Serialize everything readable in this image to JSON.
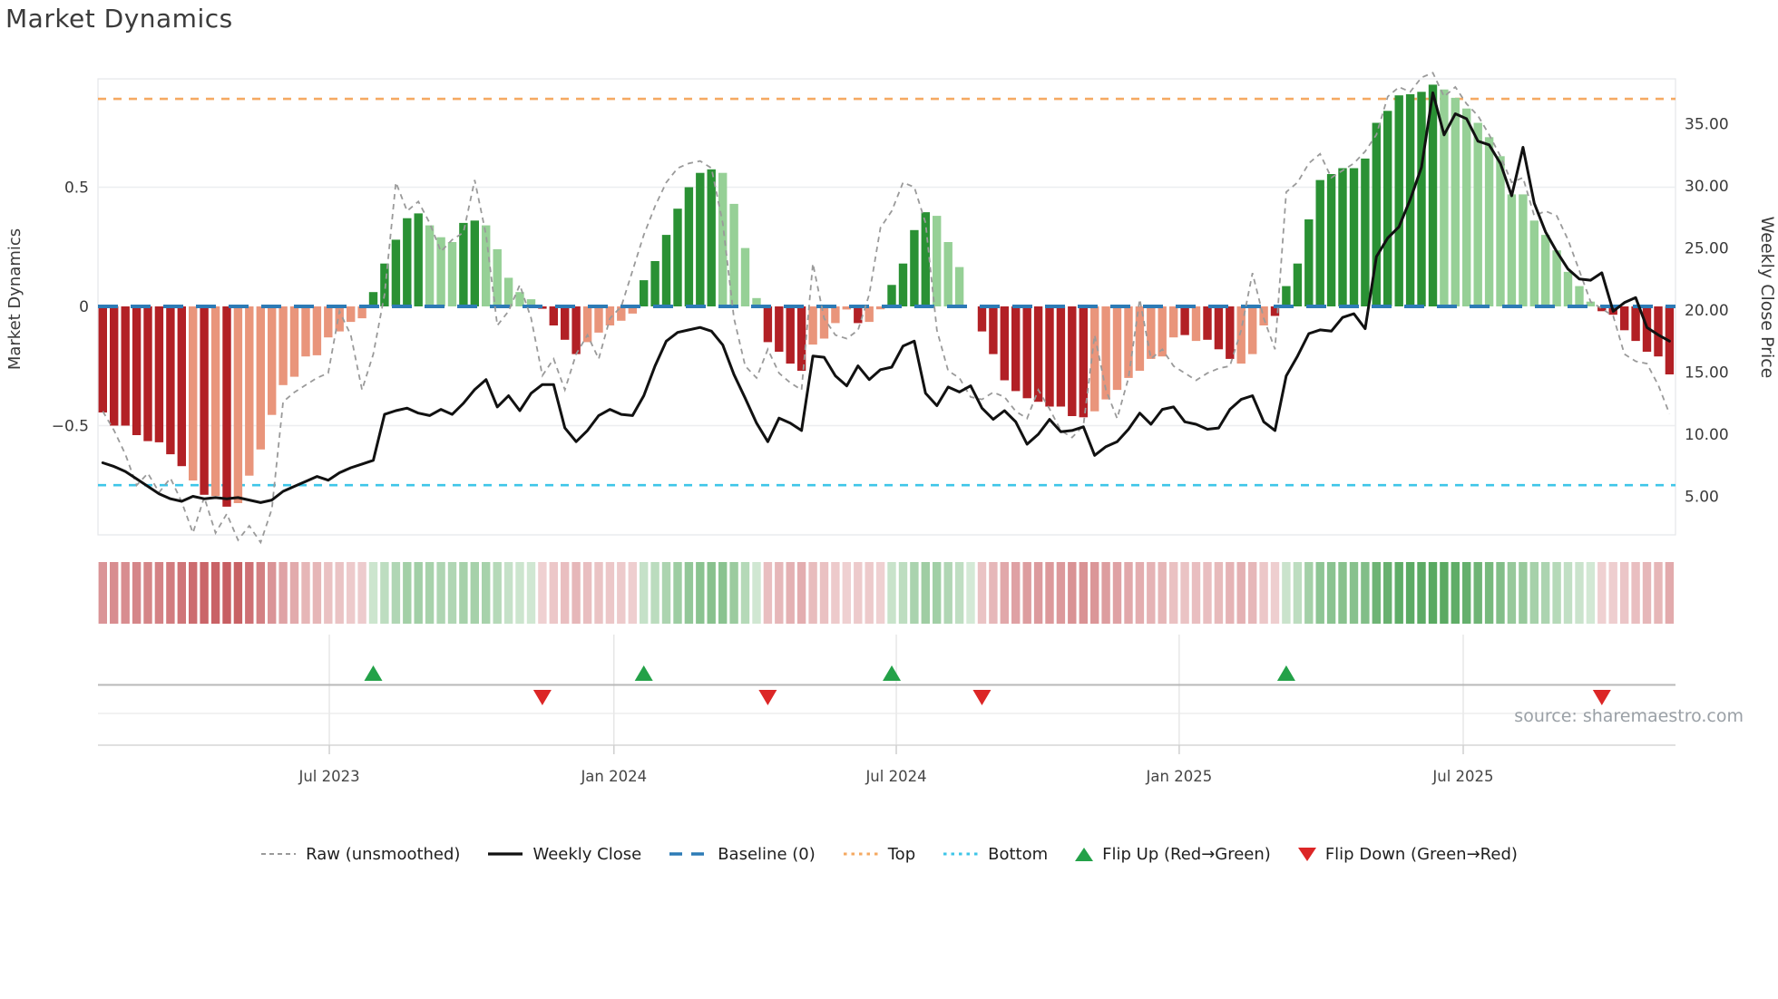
{
  "title": "Market Dynamics",
  "source_note": "source: sharemaestro.com",
  "axes": {
    "left_label": "Market Dynamics",
    "right_label": "Weekly Close Price",
    "left_ticks": [
      {
        "label": "0.5",
        "value": 0.5
      },
      {
        "label": "0",
        "value": 0
      },
      {
        "label": "−0.5",
        "value": -0.5
      }
    ],
    "right_ticks": [
      {
        "label": "35.00",
        "value": 35
      },
      {
        "label": "30.00",
        "value": 30
      },
      {
        "label": "25.00",
        "value": 25
      },
      {
        "label": "20.00",
        "value": 20
      },
      {
        "label": "15.00",
        "value": 15
      },
      {
        "label": "10.00",
        "value": 10
      },
      {
        "label": "5.00",
        "value": 5
      }
    ],
    "x_ticks": [
      {
        "label": "Jul 2023",
        "week": 20.1
      },
      {
        "label": "Jan 2024",
        "week": 45.35
      },
      {
        "label": "Jul 2024",
        "week": 70.4
      },
      {
        "label": "Jan 2025",
        "week": 95.5
      },
      {
        "label": "Jul 2025",
        "week": 120.7
      }
    ]
  },
  "colors": {
    "bar_dark_red": "#b22025",
    "bar_light_red": "#e9957b",
    "bar_dark_green": "#2a9134",
    "bar_light_green": "#96d096",
    "baseline_blue": "#2d7bb6",
    "top_orange": "#f5a962",
    "bottom_cyan": "#3ec6e8",
    "raw_gray": "#9a9a9a",
    "close_black": "#111111",
    "flip_up_green": "#23a148",
    "flip_down_red": "#dc2626",
    "grid": "#eceef0",
    "panel_border": "#e4e6e9",
    "axis_text": "#3a3a3a",
    "source_text": "#9aa0a6"
  },
  "legend": {
    "items": [
      {
        "label": "Raw (unsmoothed)",
        "swatch": "dashed-line",
        "color": "#9a9a9a"
      },
      {
        "label": "Weekly Close",
        "swatch": "solid-line",
        "color": "#111111"
      },
      {
        "label": "Baseline (0)",
        "swatch": "long-dash-line",
        "color": "#2d7bb6"
      },
      {
        "label": "Top",
        "swatch": "dotted-line",
        "color": "#f5a962"
      },
      {
        "label": "Bottom",
        "swatch": "dotted-line",
        "color": "#3ec6e8"
      },
      {
        "label": "Flip Up (Red→Green)",
        "swatch": "triangle-up",
        "color": "#23a148"
      },
      {
        "label": "Flip Down (Green→Red)",
        "swatch": "triangle-down",
        "color": "#dc2626"
      }
    ]
  },
  "chart_data": {
    "type": "combo: weekly oscillator bars + raw dashed line + weekly close price line + heatmap strip + flip markers",
    "weeks": 140,
    "baseline": 0,
    "top_line_price": 37.0,
    "bottom_line_price": 5.9,
    "left_axis_range": [
      -1.0,
      0.96
    ],
    "right_axis_range": [
      1.8,
      38.5
    ],
    "oscillator_smoothed": [
      -0.445,
      -0.5,
      -0.5,
      -0.54,
      -0.565,
      -0.57,
      -0.62,
      -0.67,
      -0.73,
      -0.79,
      -0.795,
      -0.84,
      -0.825,
      -0.71,
      -0.6,
      -0.455,
      -0.33,
      -0.295,
      -0.21,
      -0.205,
      -0.13,
      -0.105,
      -0.065,
      -0.05,
      0.06,
      0.18,
      0.28,
      0.37,
      0.39,
      0.34,
      0.29,
      0.27,
      0.35,
      0.36,
      0.34,
      0.24,
      0.12,
      0.06,
      0.03,
      -0.01,
      -0.08,
      -0.14,
      -0.2,
      -0.15,
      -0.11,
      -0.08,
      -0.06,
      -0.03,
      0.11,
      0.19,
      0.3,
      0.41,
      0.5,
      0.56,
      0.575,
      0.56,
      0.43,
      0.245,
      0.035,
      -0.15,
      -0.19,
      -0.24,
      -0.27,
      -0.16,
      -0.135,
      -0.07,
      -0.013,
      -0.07,
      -0.065,
      -0.012,
      0.09,
      0.18,
      0.32,
      0.395,
      0.38,
      0.27,
      0.165,
      0.0,
      -0.105,
      -0.2,
      -0.31,
      -0.355,
      -0.385,
      -0.4,
      -0.42,
      -0.42,
      -0.46,
      -0.465,
      -0.44,
      -0.39,
      -0.35,
      -0.3,
      -0.27,
      -0.22,
      -0.21,
      -0.13,
      -0.12,
      -0.145,
      -0.14,
      -0.18,
      -0.22,
      -0.24,
      -0.2,
      -0.08,
      -0.04,
      0.085,
      0.18,
      0.365,
      0.53,
      0.555,
      0.58,
      0.58,
      0.62,
      0.77,
      0.82,
      0.885,
      0.89,
      0.9,
      0.93,
      0.91,
      0.875,
      0.83,
      0.77,
      0.71,
      0.63,
      0.47,
      0.47,
      0.36,
      0.3,
      0.235,
      0.145,
      0.085,
      0.02,
      -0.02,
      -0.035,
      -0.1,
      -0.145,
      -0.19,
      -0.21,
      -0.285
    ],
    "oscillator_shade": "ddddddddldldllllllllllllldddddlllddlllllddddlllllddddddदllllddddlllldllddddllllddddddddddlllllllldlddd llldddddddddddddddllllllllllllllddddddd",
    "oscillator_shade_fixed": "ddddddddldldllllllllllllddddd lllddlllllddddlllllddddddd llllddddllll dll dddd llll dddddddddd llllllll d l ddd lll d dddddddddddddd llllllllllllll ddddddd",
    "oscillator_raw": [
      -0.44,
      -0.52,
      -0.62,
      -0.75,
      -0.7,
      -0.78,
      -0.72,
      -0.82,
      -0.95,
      -0.8,
      -0.95,
      -0.87,
      -0.98,
      -0.92,
      -0.99,
      -0.85,
      -0.4,
      -0.36,
      -0.33,
      -0.3,
      -0.28,
      -0.02,
      -0.12,
      -0.35,
      -0.2,
      0.05,
      0.52,
      0.4,
      0.44,
      0.35,
      0.23,
      0.28,
      0.31,
      0.53,
      0.3,
      -0.08,
      -0.02,
      0.09,
      -0.05,
      -0.29,
      -0.22,
      -0.35,
      -0.2,
      -0.12,
      -0.22,
      -0.05,
      0.0,
      0.15,
      0.3,
      0.42,
      0.52,
      0.58,
      0.6,
      0.61,
      0.58,
      0.35,
      -0.05,
      -0.25,
      -0.3,
      -0.18,
      -0.28,
      -0.32,
      -0.35,
      0.18,
      -0.05,
      -0.12,
      -0.135,
      -0.1,
      0.05,
      0.33,
      0.4,
      0.52,
      0.5,
      0.35,
      -0.1,
      -0.27,
      -0.3,
      -0.38,
      -0.39,
      -0.36,
      -0.38,
      -0.44,
      -0.47,
      -0.35,
      -0.43,
      -0.52,
      -0.55,
      -0.5,
      -0.12,
      -0.35,
      -0.47,
      -0.3,
      0.03,
      -0.22,
      -0.18,
      -0.25,
      -0.28,
      -0.31,
      -0.28,
      -0.26,
      -0.25,
      -0.1,
      0.14,
      -0.05,
      -0.18,
      0.48,
      0.52,
      0.6,
      0.64,
      0.54,
      0.57,
      0.6,
      0.65,
      0.72,
      0.88,
      0.92,
      0.9,
      0.96,
      0.98,
      0.88,
      0.92,
      0.85,
      0.8,
      0.72,
      0.63,
      0.52,
      0.54,
      0.38,
      0.4,
      0.38,
      0.28,
      0.15,
      0.02,
      -0.01,
      -0.04,
      -0.2,
      -0.23,
      -0.24,
      -0.33,
      -0.45
    ],
    "weekly_close": [
      7.7,
      7.4,
      7.0,
      6.4,
      5.8,
      5.2,
      4.8,
      4.6,
      5.0,
      4.8,
      4.9,
      4.8,
      4.9,
      4.7,
      4.5,
      4.7,
      5.4,
      5.8,
      6.2,
      6.6,
      6.3,
      6.9,
      7.3,
      7.6,
      7.9,
      11.6,
      11.9,
      12.1,
      11.7,
      11.5,
      12.0,
      11.6,
      12.5,
      13.6,
      14.4,
      12.2,
      13.1,
      11.9,
      13.3,
      14.0,
      14.0,
      10.5,
      9.4,
      10.3,
      11.5,
      12.0,
      11.6,
      11.5,
      13.1,
      15.5,
      17.5,
      18.2,
      18.4,
      18.6,
      18.3,
      17.2,
      14.8,
      12.9,
      10.9,
      9.4,
      11.3,
      10.9,
      10.3,
      16.3,
      16.2,
      14.7,
      13.9,
      15.5,
      14.4,
      15.2,
      15.4,
      17.1,
      17.5,
      13.3,
      12.3,
      13.8,
      13.4,
      13.9,
      12.1,
      11.2,
      11.9,
      11.0,
      9.2,
      10.0,
      11.2,
      10.2,
      10.3,
      10.6,
      8.3,
      9.0,
      9.4,
      10.4,
      11.7,
      10.8,
      12.0,
      12.2,
      11.0,
      10.8,
      10.4,
      10.5,
      12.0,
      12.8,
      13.1,
      11.0,
      10.3,
      14.7,
      16.3,
      18.1,
      18.4,
      18.3,
      19.4,
      19.7,
      18.5,
      24.3,
      25.8,
      26.7,
      28.9,
      31.5,
      37.5,
      34.1,
      35.8,
      35.4,
      33.6,
      33.3,
      31.8,
      29.2,
      33.1,
      28.6,
      26.3,
      24.7,
      23.3,
      22.5,
      22.4,
      23.0,
      19.9,
      20.6,
      21.0,
      18.6,
      18.0,
      17.5
    ],
    "flip_up_weeks": [
      24,
      48,
      70,
      105
    ],
    "flip_down_weeks": [
      39,
      59,
      78,
      133
    ],
    "heatmap": "mirrors oscillator_smoothed sign and magnitude as red/green intensity strip"
  }
}
